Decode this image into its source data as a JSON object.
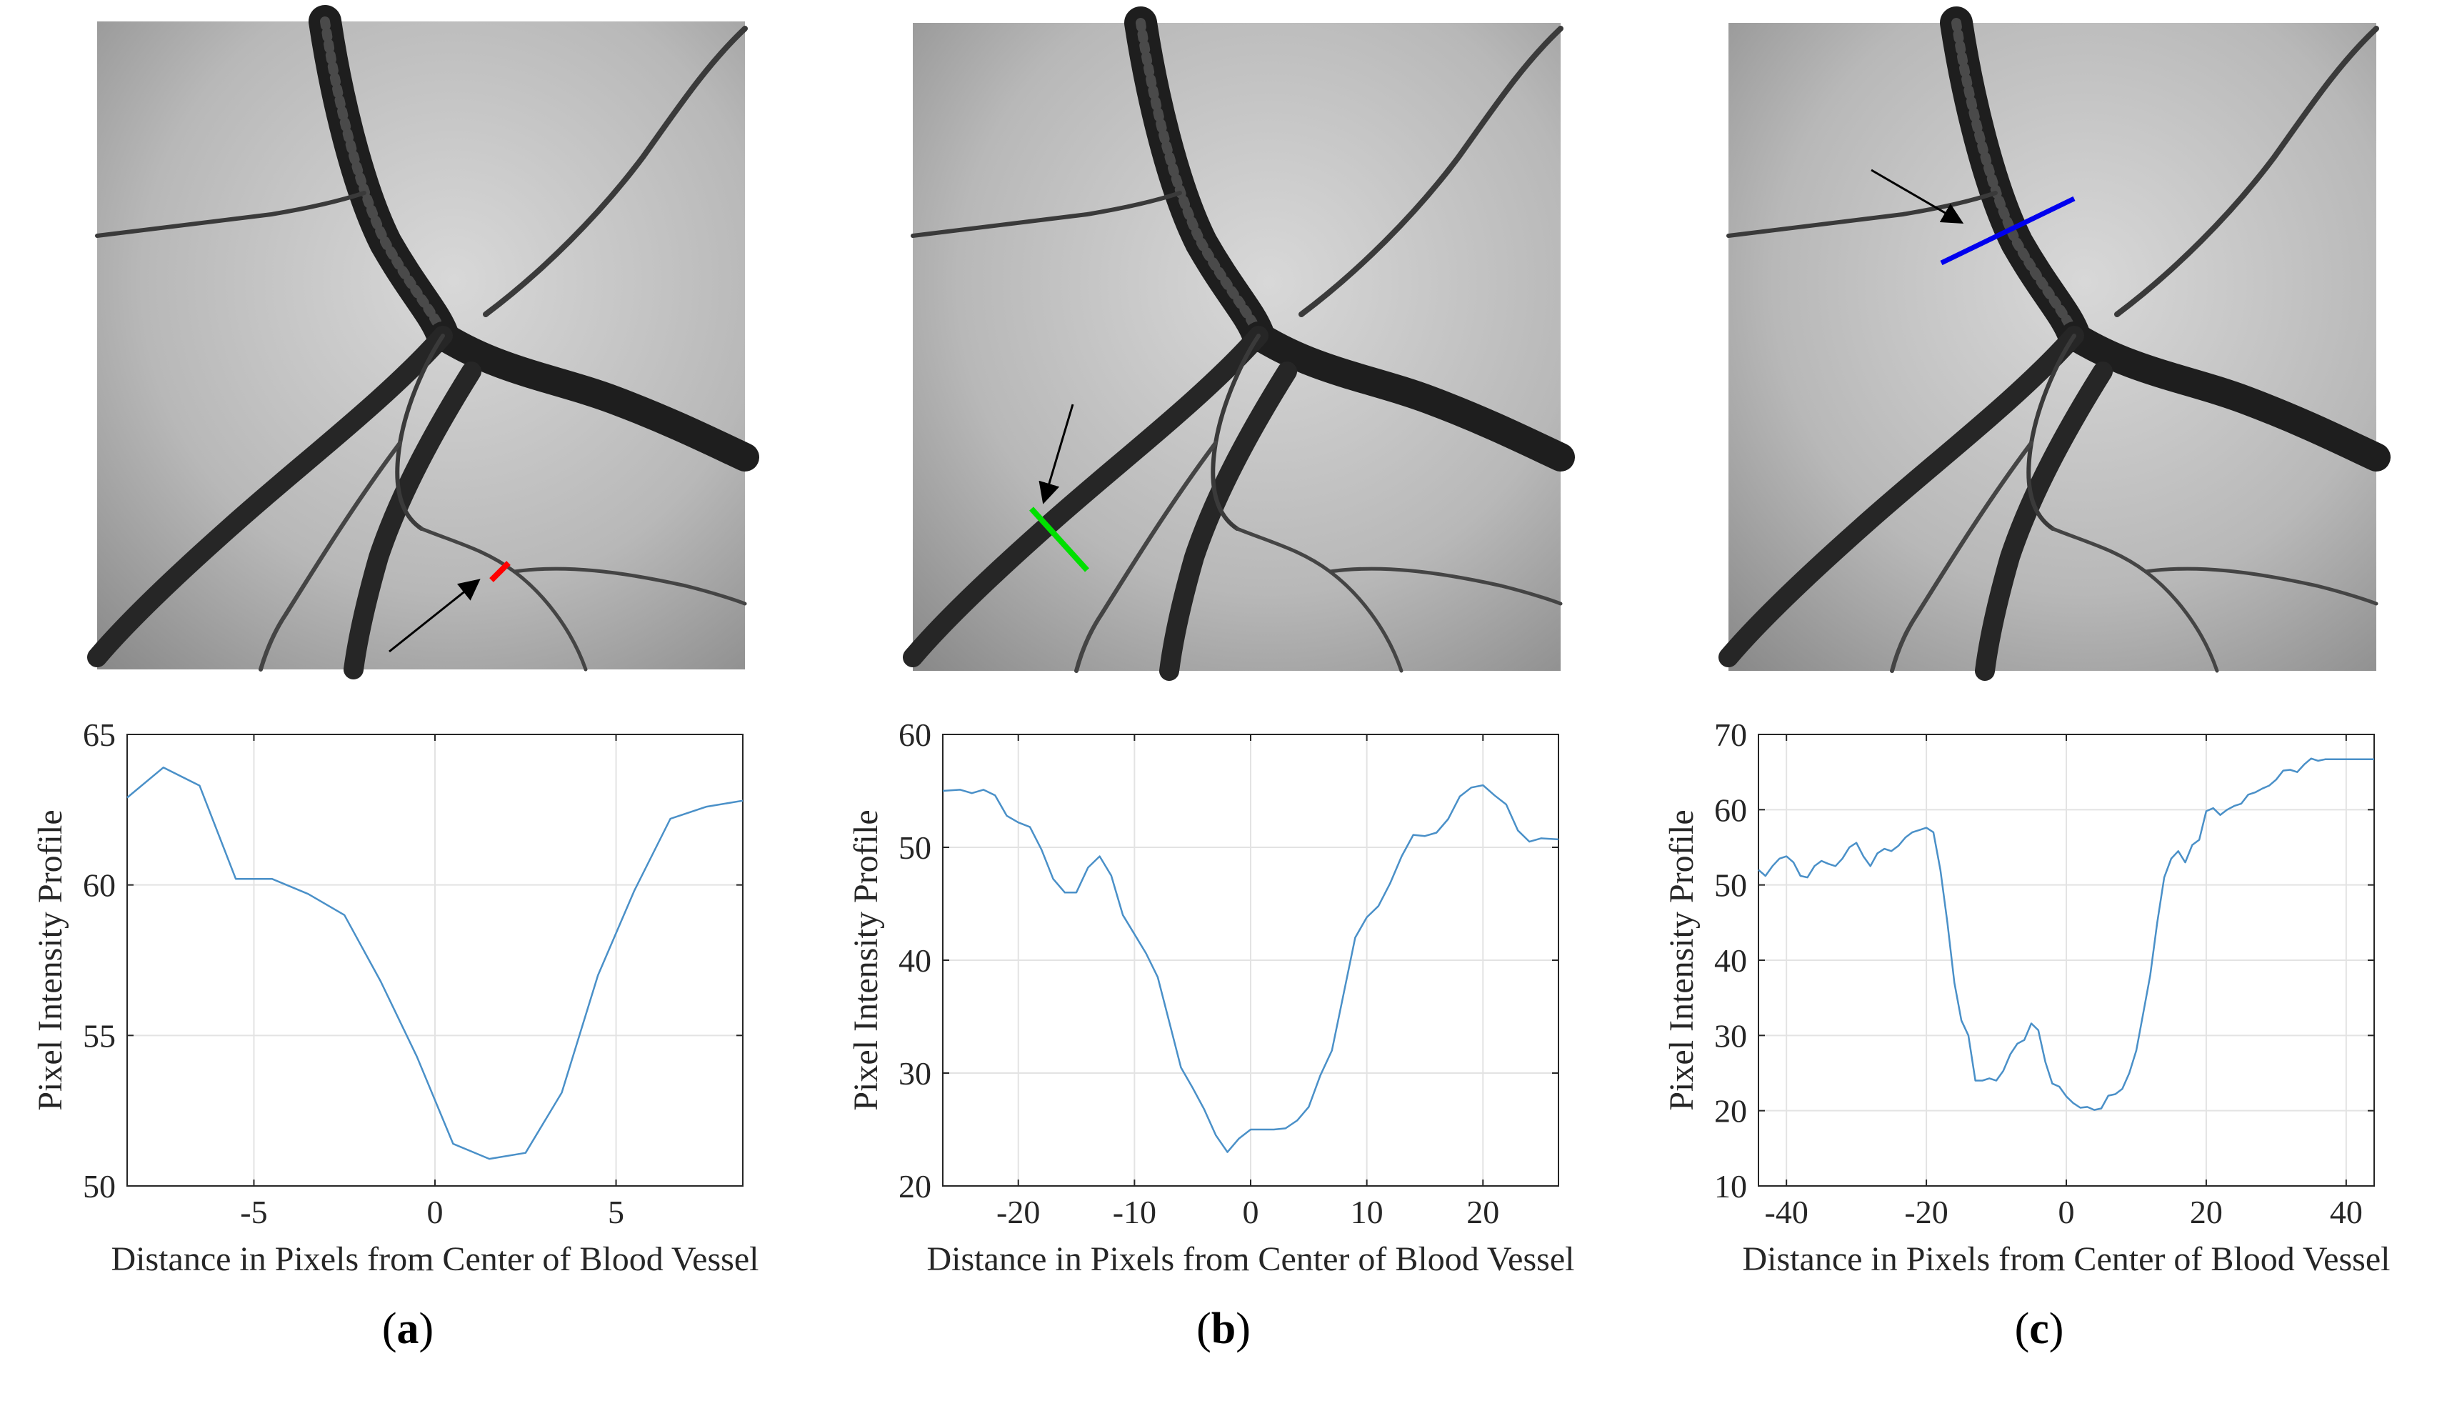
{
  "panels": [
    {
      "caption": "a",
      "marker_color": "#ff0000",
      "chart": {
        "type": "line",
        "xlabel": "Distance in Pixels from Center of Blood Vessel",
        "ylabel": "Pixel Intensity Profile",
        "xlim": [
          -8.5,
          8.5
        ],
        "ylim": [
          50,
          65
        ],
        "xticks": [
          -5,
          0,
          5
        ],
        "yticks": [
          50,
          55,
          60,
          65
        ],
        "line_color": "#4a90c8",
        "x": [
          -8.5,
          -7.5,
          -6.5,
          -5.5,
          -4.5,
          -3.5,
          -2.5,
          -1.5,
          -0.5,
          0.5,
          1.5,
          2.5,
          3.5,
          4.5,
          5.5,
          6.5,
          7.5,
          8.5
        ],
        "y": [
          62.9,
          63.9,
          63.3,
          60.2,
          60.2,
          59.7,
          59.0,
          56.8,
          54.3,
          51.4,
          50.9,
          51.1,
          53.1,
          57.0,
          59.8,
          62.2,
          62.6,
          62.8
        ]
      }
    },
    {
      "caption": "b",
      "marker_color": "#00e000",
      "chart": {
        "type": "line",
        "xlabel": "Distance in Pixels from Center of Blood Vessel",
        "ylabel": "Pixel Intensity Profile",
        "xlim": [
          -26.5,
          26.5
        ],
        "ylim": [
          20,
          60
        ],
        "xticks": [
          -20,
          -10,
          0,
          10,
          20
        ],
        "yticks": [
          20,
          30,
          40,
          50,
          60
        ],
        "line_color": "#4a90c8",
        "x": [
          -26.5,
          -25,
          -24,
          -23,
          -22,
          -21,
          -20,
          -19,
          -18,
          -17,
          -16,
          -15,
          -14,
          -13,
          -12,
          -11,
          -10,
          -9,
          -8,
          -7,
          -6,
          -5,
          -4,
          -3,
          -2,
          -1,
          0,
          1,
          2,
          3,
          4,
          5,
          6,
          7,
          8,
          9,
          10,
          11,
          12,
          13,
          14,
          15,
          16,
          17,
          18,
          19,
          20,
          21,
          22,
          23,
          24,
          25,
          26.5
        ],
        "y": [
          55.0,
          55.1,
          54.8,
          55.1,
          54.6,
          52.8,
          52.2,
          51.8,
          49.8,
          47.2,
          46.0,
          46.0,
          48.2,
          49.2,
          47.5,
          44.0,
          42.3,
          40.6,
          38.5,
          34.5,
          30.5,
          28.7,
          26.8,
          24.5,
          23.0,
          24.2,
          25.0,
          25.0,
          25.0,
          25.1,
          25.8,
          27.0,
          29.8,
          32.0,
          37.0,
          42.0,
          43.8,
          44.8,
          46.8,
          49.2,
          51.1,
          51.0,
          51.3,
          52.5,
          54.5,
          55.3,
          55.5,
          54.6,
          53.8,
          51.5,
          50.5,
          50.8,
          50.7
        ]
      }
    },
    {
      "caption": "c",
      "marker_color": "#0000ee",
      "chart": {
        "type": "line",
        "xlabel": "Distance in Pixels from Center of Blood Vessel",
        "ylabel": "Pixel Intensity Profile",
        "xlim": [
          -44,
          44
        ],
        "ylim": [
          10,
          70
        ],
        "xticks": [
          -40,
          -20,
          0,
          20,
          40
        ],
        "yticks": [
          10,
          20,
          30,
          40,
          50,
          60,
          70
        ],
        "line_color": "#4a90c8",
        "x": [
          -44,
          -43,
          -42,
          -41,
          -40,
          -39,
          -38,
          -37,
          -36,
          -35,
          -34,
          -33,
          -32,
          -31,
          -30,
          -29,
          -28,
          -27,
          -26,
          -25,
          -24,
          -23,
          -22,
          -21,
          -20,
          -19,
          -18,
          -17,
          -16,
          -15,
          -14,
          -13,
          -12,
          -11,
          -10,
          -9,
          -8,
          -7,
          -6,
          -5,
          -4,
          -3,
          -2,
          -1,
          0,
          1,
          2,
          3,
          4,
          5,
          6,
          7,
          8,
          9,
          10,
          11,
          12,
          13,
          14,
          15,
          16,
          17,
          18,
          19,
          20,
          21,
          22,
          23,
          24,
          25,
          26,
          27,
          28,
          29,
          30,
          31,
          32,
          33,
          34,
          35,
          36,
          37,
          38,
          39,
          40,
          41,
          42,
          43,
          44
        ],
        "y": [
          52.0,
          51.2,
          52.5,
          53.5,
          53.8,
          53.0,
          51.2,
          51.0,
          52.5,
          53.2,
          52.8,
          52.5,
          53.5,
          55.0,
          55.6,
          53.8,
          52.5,
          54.2,
          54.8,
          54.5,
          55.2,
          56.3,
          57.0,
          57.3,
          57.6,
          57.0,
          52.0,
          45.0,
          37.0,
          32.0,
          30.0,
          24.0,
          24.0,
          24.3,
          24.0,
          25.3,
          27.5,
          28.9,
          29.4,
          31.6,
          30.7,
          26.5,
          23.6,
          23.2,
          21.9,
          21.0,
          20.4,
          20.5,
          20.1,
          20.3,
          22.0,
          22.2,
          22.9,
          25.0,
          28.0,
          33.0,
          38.0,
          45.0,
          51.0,
          53.5,
          54.5,
          53.0,
          55.3,
          56.0,
          59.8,
          60.2,
          59.3,
          60.0,
          60.5,
          60.8,
          62.0,
          62.3,
          62.8,
          63.2,
          64.0,
          65.2,
          65.3,
          65.0,
          66.0,
          66.8,
          66.5,
          66.7,
          66.7,
          66.7,
          66.7,
          66.7,
          66.7,
          66.7,
          66.7
        ]
      }
    }
  ]
}
